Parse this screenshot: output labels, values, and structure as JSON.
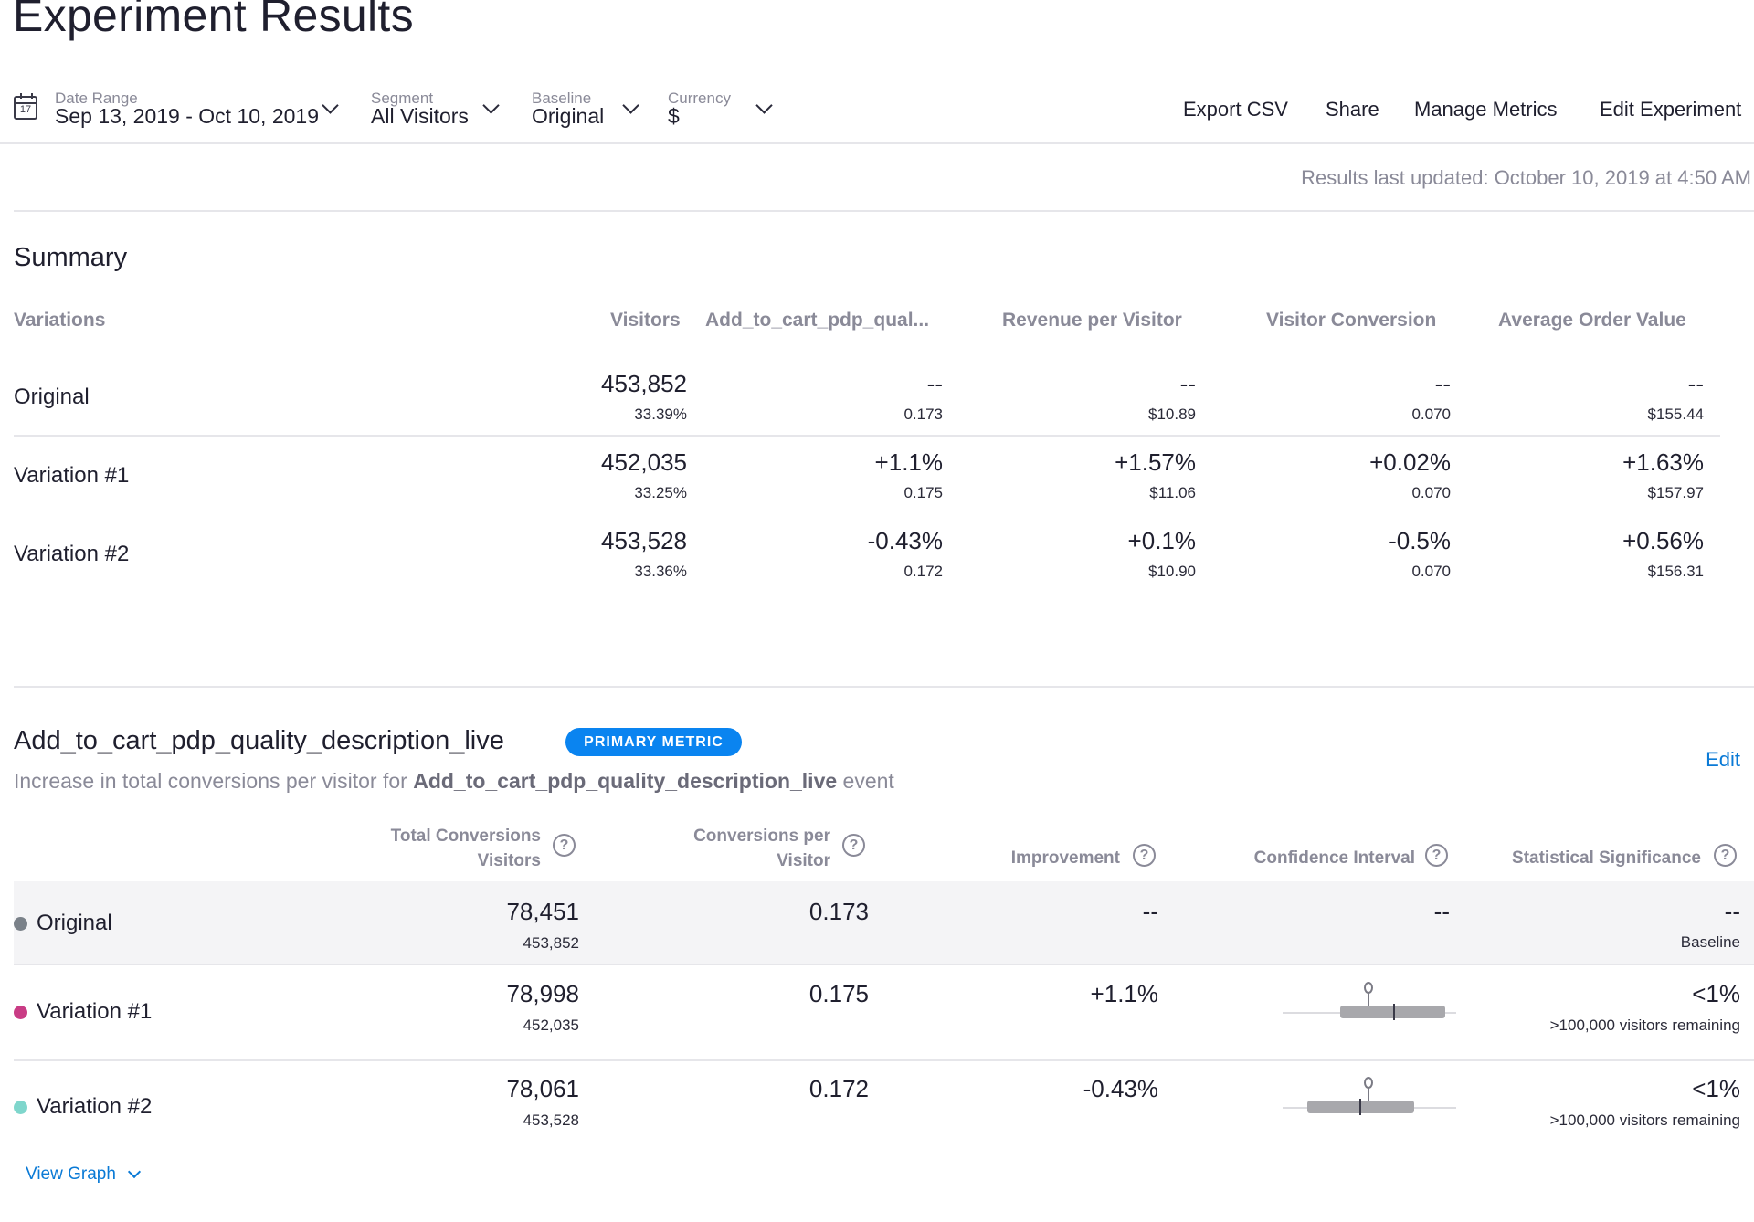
{
  "page": {
    "title": "Experiment Results"
  },
  "filters": {
    "date_range": {
      "label": "Date Range",
      "value": "Sep 13, 2019 - Oct 10, 2019",
      "calendar_day": "17"
    },
    "segment": {
      "label": "Segment",
      "value": "All Visitors"
    },
    "baseline": {
      "label": "Baseline",
      "value": "Original"
    },
    "currency": {
      "label": "Currency",
      "value": "$"
    }
  },
  "actions": {
    "export_csv": "Export CSV",
    "share": "Share",
    "manage_metrics": "Manage Metrics",
    "edit_experiment": "Edit Experiment"
  },
  "updated": "Results last updated: October 10, 2019 at 4:50 AM",
  "summary": {
    "heading": "Summary",
    "columns": [
      "Variations",
      "Visitors",
      "Add_to_cart_pdp_qual...",
      "Revenue per Visitor",
      "Visitor Conversion",
      "Average Order Value"
    ],
    "rows": [
      {
        "name": "Original",
        "visitors": "453,852",
        "share": "33.39%",
        "metrics": [
          {
            "change": "--",
            "value": "0.173"
          },
          {
            "change": "--",
            "value": "$10.89"
          },
          {
            "change": "--",
            "value": "0.070"
          },
          {
            "change": "--",
            "value": "$155.44"
          }
        ]
      },
      {
        "name": "Variation #1",
        "visitors": "452,035",
        "share": "33.25%",
        "metrics": [
          {
            "change": "+1.1%",
            "value": "0.175"
          },
          {
            "change": "+1.57%",
            "value": "$11.06"
          },
          {
            "change": "+0.02%",
            "value": "0.070"
          },
          {
            "change": "+1.63%",
            "value": "$157.97"
          }
        ]
      },
      {
        "name": "Variation #2",
        "visitors": "453,528",
        "share": "33.36%",
        "metrics": [
          {
            "change": "-0.43%",
            "value": "0.172"
          },
          {
            "change": "+0.1%",
            "value": "$10.90"
          },
          {
            "change": "-0.5%",
            "value": "0.070"
          },
          {
            "change": "+0.56%",
            "value": "$156.31"
          }
        ]
      }
    ]
  },
  "metric": {
    "name": "Add_to_cart_pdp_quality_description_live",
    "badge": "PRIMARY METRIC",
    "desc_prefix": "Increase in total conversions per visitor for ",
    "desc_event": "Add_to_cart_pdp_quality_description_live",
    "desc_suffix": " event",
    "edit": "Edit",
    "columns": {
      "total_conversions_1": "Total Conversions",
      "total_conversions_2": "Visitors",
      "conversions_per_1": "Conversions per",
      "conversions_per_2": "Visitor",
      "improvement": "Improvement",
      "confidence_interval": "Confidence Interval",
      "statistical_significance": "Statistical Significance",
      "help": "?"
    },
    "rows": [
      {
        "name": "Original",
        "color": "#7a8189",
        "conversions": "78,451",
        "visitors": "453,852",
        "cpv": "0.173",
        "improvement": "--",
        "ci": "--",
        "significance": "--",
        "sig_note": "Baseline"
      },
      {
        "name": "Variation #1",
        "color": "#c93c85",
        "conversions": "78,998",
        "visitors": "452,035",
        "cpv": "0.175",
        "improvement": "+1.1%",
        "significance": "<1%",
        "sig_note": ">100,000 visitors remaining"
      },
      {
        "name": "Variation #2",
        "color": "#7fd6cc",
        "conversions": "78,061",
        "visitors": "453,528",
        "cpv": "0.172",
        "improvement": "-0.43%",
        "significance": "<1%",
        "sig_note": ">100,000 visitors remaining"
      }
    ],
    "view_graph": "View Graph"
  }
}
